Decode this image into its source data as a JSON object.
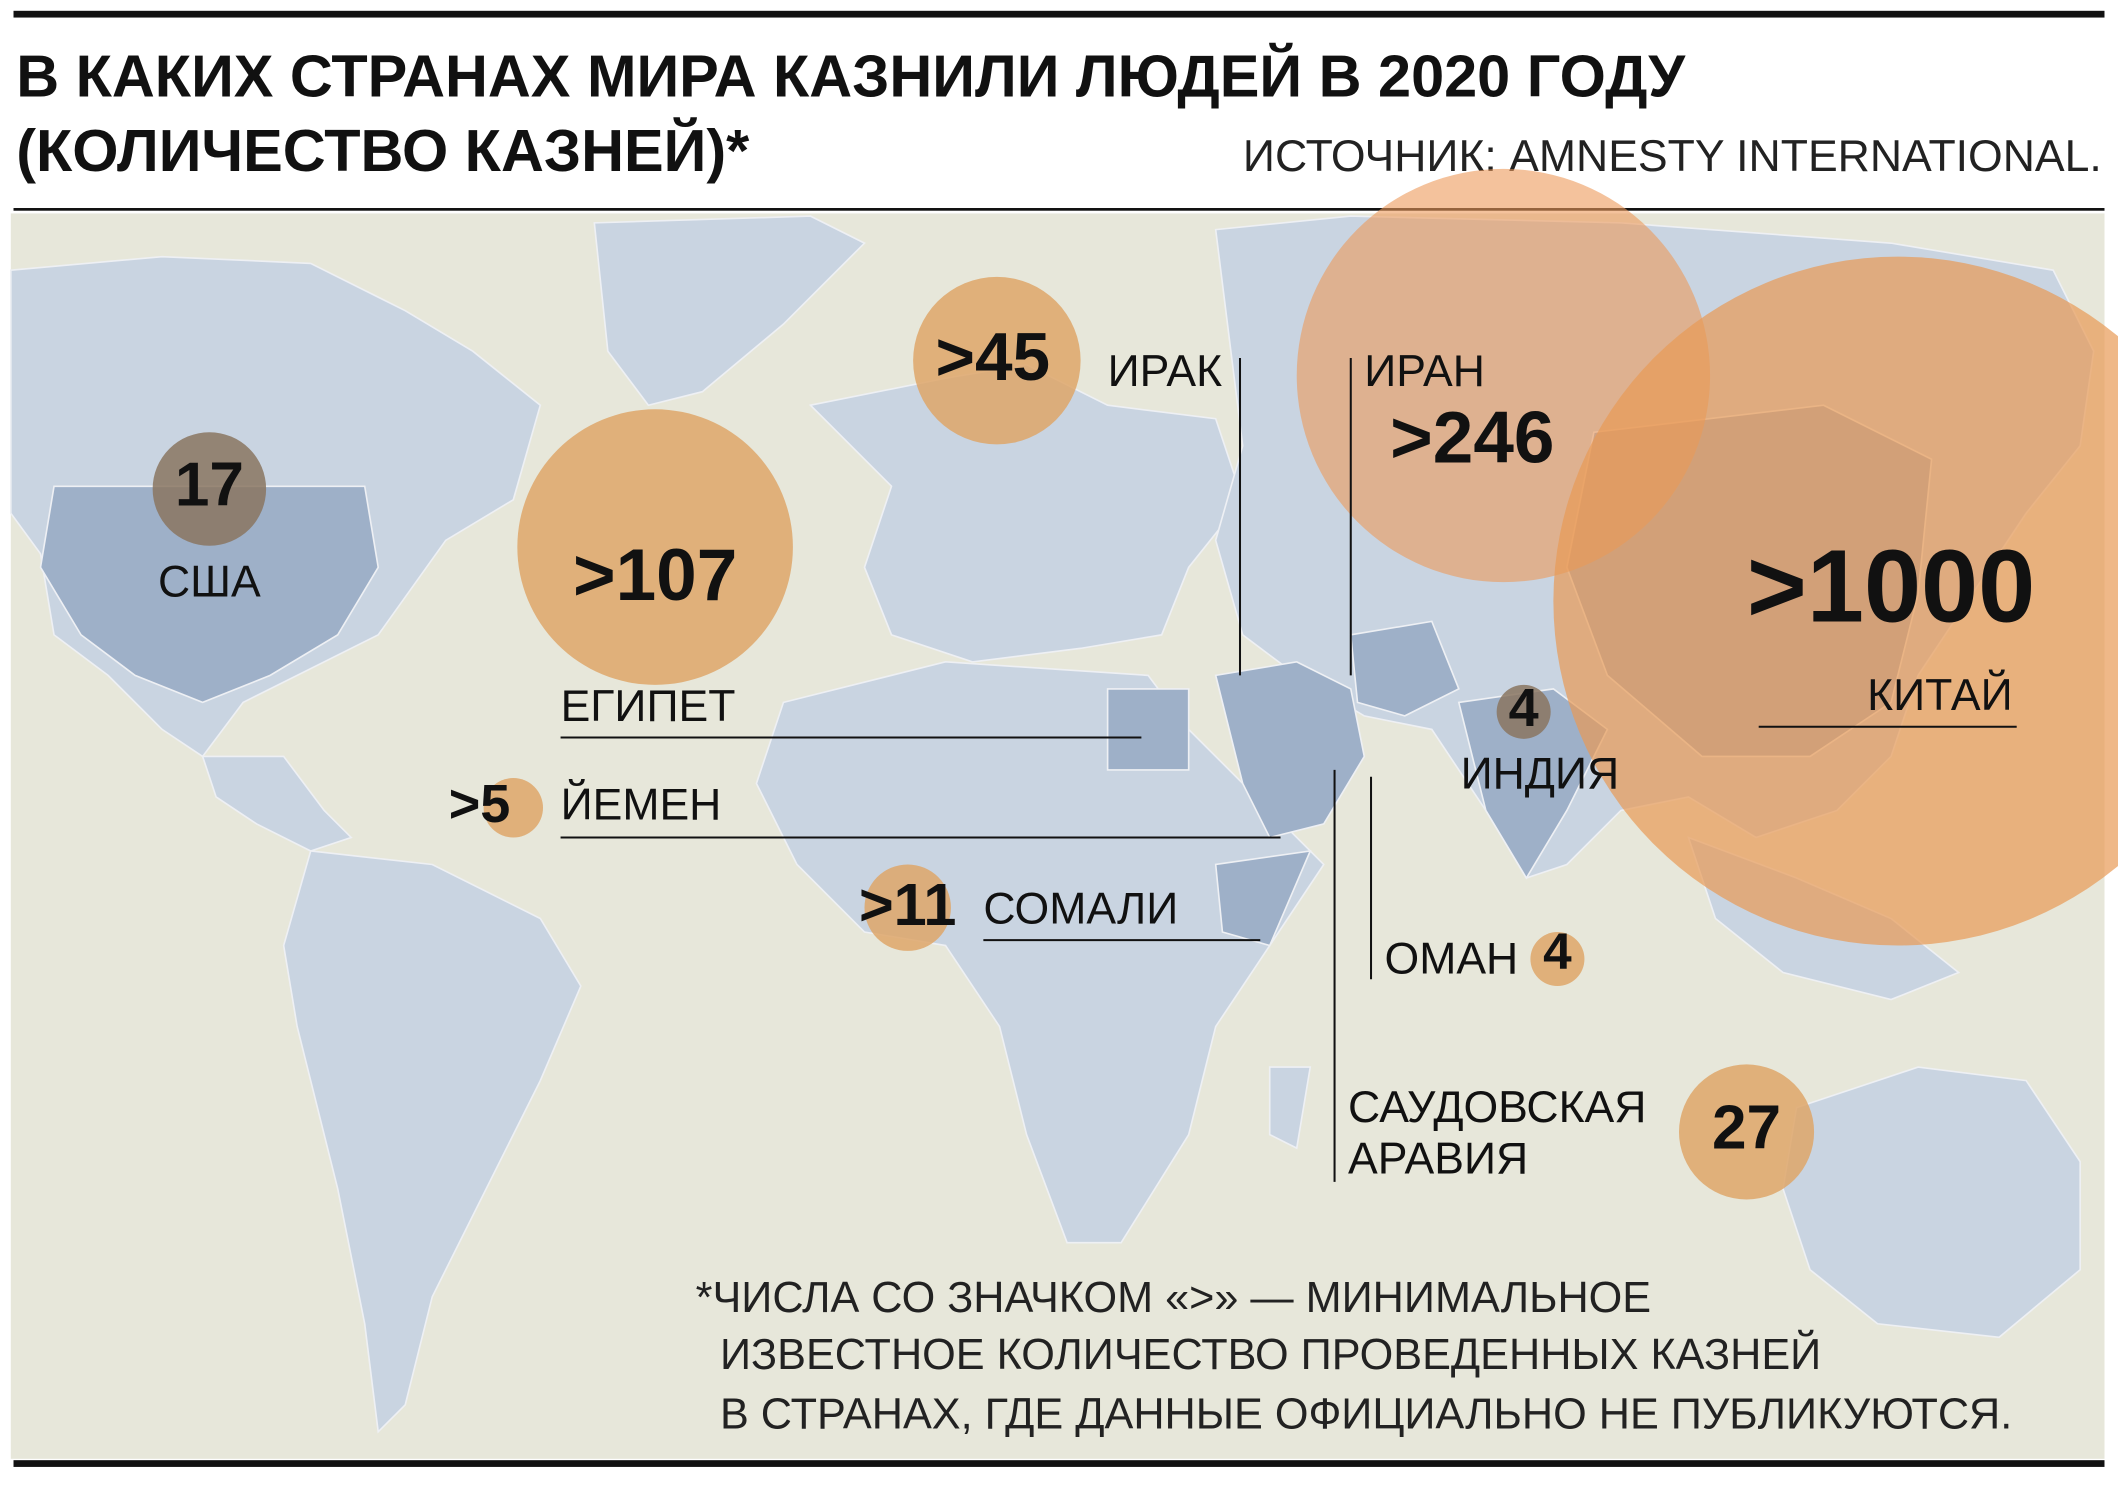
{
  "header": {
    "title_lines": [
      "В КАКИХ СТРАНАХ МИРА КАЗНИЛИ ЛЮДЕЙ В 2020 ГОДУ",
      "(КОЛИЧЕСТВО КАЗНЕЙ)*"
    ],
    "source": "ИСТОЧНИК: AMNESTY INTERNATIONAL."
  },
  "markers": [
    {
      "label": "США",
      "value": "17"
    },
    {
      "label": "ЕГИПЕТ",
      "value": ">107"
    },
    {
      "label": "ИРАК",
      "value": ">45"
    },
    {
      "label": "ИРАН",
      "value": ">246"
    },
    {
      "label": "КИТАЙ",
      "value": ">1000"
    },
    {
      "label": "ИНДИЯ",
      "value": "4"
    },
    {
      "label": "ЙЕМЕН",
      "value": ">5"
    },
    {
      "label": "СОМАЛИ",
      "value": ">11"
    },
    {
      "label": "ОМАН",
      "value": "4"
    },
    {
      "label": [
        "САУДОВСКАЯ",
        "АРАВИЯ"
      ],
      "value": "27"
    }
  ],
  "footnote": [
    "*ЧИСЛА СО ЗНАЧКОМ «>» — МИНИМАЛЬНОЕ",
    "ИЗВЕСТНОЕ   КОЛИЧЕСТВО ПРОВЕДЕННЫХ  КАЗНЕЙ",
    "В СТРАНАХ, ГДЕ ДАННЫЕ ОФИЦИАЛЬНО НЕ ПУБЛИКУЮТСЯ."
  ]
}
